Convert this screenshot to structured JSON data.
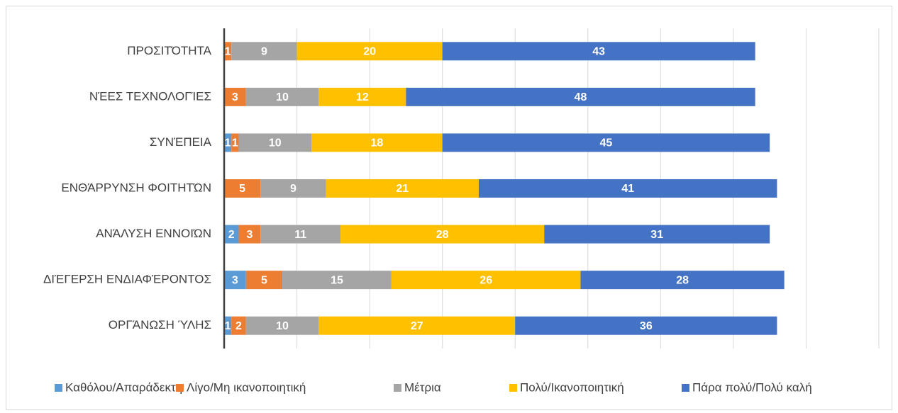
{
  "chart_data": {
    "type": "stacked-bar-horizontal",
    "categories": [
      "ΠΡΟΣΙΤΌΤΗΤΑ",
      "ΝΈΕΣ ΤΕΧΝΟΛΟΓΊΕΣ",
      "ΣΥΝΈΠΕΙΑ",
      "ΕΝΘΆΡΡΥΝΣΗ ΦΟΙΤΗΤΏΝ",
      "ΑΝΆΛΥΣΗ ΕΝΝΟΙΏΝ",
      "ΔΙΈΓΕΡΣΗ ΕΝΔΙΑΦΈΡΟΝΤΟΣ",
      "ΟΡΓΆΝΩΣΗ ΎΛΗΣ"
    ],
    "series": [
      {
        "name": "Καθόλου/Απαράδεκτη",
        "color": "#5b9bd5",
        "values": [
          null,
          0,
          1,
          0,
          2,
          3,
          1
        ]
      },
      {
        "name": "Λίγο/Μη ικανοποιητική",
        "color": "#ed7d31",
        "values": [
          1,
          3,
          1,
          5,
          3,
          5,
          2
        ]
      },
      {
        "name": "Μέτρια",
        "color": "#a5a5a5",
        "values": [
          9,
          10,
          10,
          9,
          11,
          15,
          10
        ]
      },
      {
        "name": "Πολύ/Ικανοποιητική",
        "color": "#ffc000",
        "values": [
          20,
          12,
          18,
          21,
          28,
          26,
          27
        ]
      },
      {
        "name": "Πάρα πολύ/Πολύ καλή",
        "color": "#4472c4",
        "values": [
          43,
          48,
          45,
          41,
          31,
          28,
          36
        ]
      }
    ],
    "xlim": [
      0,
      90
    ],
    "xticks": [
      0,
      10,
      20,
      30,
      40,
      50,
      60,
      70,
      80,
      90
    ],
    "grid": true,
    "legend": "bottom"
  }
}
